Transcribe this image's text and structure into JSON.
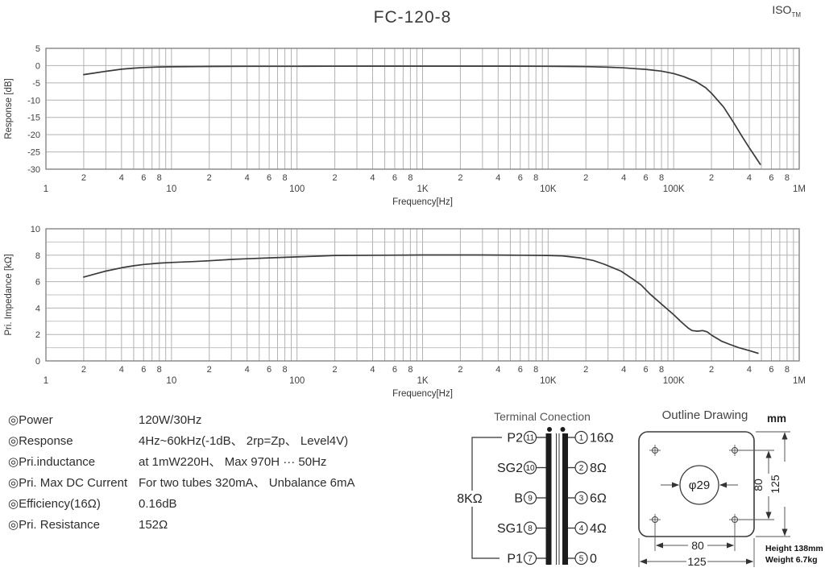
{
  "header": {
    "title": "FC-120-8",
    "brand": "ISO",
    "brand_sub": "TM"
  },
  "chart_data": [
    {
      "type": "line",
      "xscale": "log",
      "xlabel": "Frequency[Hz]",
      "ylabel": "Response [dB]",
      "xlim": [
        1,
        1000000
      ],
      "ylim": [
        -30,
        5
      ],
      "yticks": [
        5,
        0,
        -5,
        -10,
        -15,
        -20,
        -25,
        -30
      ],
      "yticks_minor": [],
      "decade_labels": [
        "1",
        "10",
        "100",
        "1K",
        "10K",
        "100K",
        "1M"
      ],
      "minor_tick_labels": [
        2,
        4,
        6,
        8
      ],
      "grid": true,
      "legend": "none",
      "series": [
        {
          "name": "Response",
          "x": [
            2,
            2.5,
            3,
            4,
            5,
            6,
            8,
            10,
            15,
            20,
            40,
            70,
            100,
            200,
            500,
            1000,
            2000,
            5000,
            10000,
            15000,
            20000,
            30000,
            40000,
            50000,
            60000,
            80000,
            100000,
            120000,
            150000,
            180000,
            200000,
            250000,
            300000,
            350000,
            400000,
            450000,
            490000
          ],
          "y": [
            -2.6,
            -2.1,
            -1.65,
            -1.05,
            -0.75,
            -0.55,
            -0.4,
            -0.35,
            -0.3,
            -0.25,
            -0.2,
            -0.2,
            -0.2,
            -0.18,
            -0.15,
            -0.15,
            -0.15,
            -0.15,
            -0.2,
            -0.25,
            -0.3,
            -0.45,
            -0.65,
            -0.9,
            -1.1,
            -1.6,
            -2.3,
            -3.2,
            -4.6,
            -6.4,
            -8.0,
            -12.0,
            -16.5,
            -20.5,
            -23.8,
            -26.6,
            -28.6
          ]
        }
      ]
    },
    {
      "type": "line",
      "xscale": "log",
      "xlabel": "Frequency[Hz]",
      "ylabel": "Pri. Impedance [kΩ]",
      "xlim": [
        1,
        1000000
      ],
      "ylim": [
        0,
        10
      ],
      "yticks": [
        10,
        8,
        6,
        4,
        2,
        0
      ],
      "yticks_minor": [
        9,
        7,
        5,
        3,
        1
      ],
      "decade_labels": [
        "1",
        "10",
        "100",
        "1K",
        "10K",
        "100K",
        "1M"
      ],
      "minor_tick_labels": [
        2,
        4,
        6,
        8
      ],
      "grid": true,
      "legend": "none",
      "series": [
        {
          "name": "Pri. Impedance",
          "x": [
            2,
            2.5,
            3,
            4,
            5,
            6,
            8,
            10,
            15,
            20,
            30,
            40,
            60,
            100,
            150,
            200,
            500,
            1000,
            3000,
            6000,
            10000,
            13000,
            18000,
            23000,
            28000,
            38000,
            48000,
            55000,
            65000,
            80000,
            100000,
            115000,
            130000,
            140000,
            155000,
            170000,
            185000,
            200000,
            240000,
            280000,
            330000,
            400000,
            470000
          ],
          "y": [
            6.35,
            6.6,
            6.8,
            7.05,
            7.2,
            7.3,
            7.4,
            7.45,
            7.52,
            7.58,
            7.68,
            7.73,
            7.8,
            7.87,
            7.93,
            7.98,
            8.0,
            8.02,
            8.02,
            8.0,
            7.98,
            7.95,
            7.8,
            7.6,
            7.32,
            6.8,
            6.15,
            5.75,
            5.05,
            4.3,
            3.5,
            2.95,
            2.5,
            2.3,
            2.25,
            2.3,
            2.2,
            1.95,
            1.5,
            1.25,
            1.0,
            0.78,
            0.58
          ]
        }
      ]
    }
  ],
  "specs": {
    "items": [
      {
        "label": "◎Power",
        "value": "120W/30Hz"
      },
      {
        "label": "◎Response",
        "value": "4Hz~60kHz(-1dB、 2rp=Zp、 Level4V)"
      },
      {
        "label": "◎Pri.inductance",
        "value": "at 1mW220H、 Max 970H ··· 50Hz"
      },
      {
        "label": "◎Pri. Max DC Current",
        "value": "For two tubes 320mA、 Unbalance 6mA"
      },
      {
        "label": "◎Efficiency(16Ω)",
        "value": "0.16dB"
      },
      {
        "label": "◎Pri. Resistance",
        "value": "152Ω"
      }
    ]
  },
  "terminal": {
    "title": "Terminal Conection",
    "primary_impedance": "8KΩ",
    "left_pins": [
      {
        "name": "P2",
        "pin": "11"
      },
      {
        "name": "SG2",
        "pin": "10"
      },
      {
        "name": "B",
        "pin": "9"
      },
      {
        "name": "SG1",
        "pin": "8"
      },
      {
        "name": "P1",
        "pin": "7"
      }
    ],
    "right_pins": [
      {
        "pin": "1",
        "label": "16Ω"
      },
      {
        "pin": "2",
        "label": "8Ω"
      },
      {
        "pin": "3",
        "label": "6Ω"
      },
      {
        "pin": "4",
        "label": "4Ω"
      },
      {
        "pin": "5",
        "label": "0"
      }
    ]
  },
  "outline": {
    "title": "Outline Drawing",
    "unit": "mm",
    "center_hole": "φ29",
    "hole_pitch_v": "80",
    "overall_v": "125",
    "hole_pitch_h": "80",
    "overall_h": "125",
    "height_note": "Height 138mm",
    "weight_note": "Weight 6.7kg"
  }
}
